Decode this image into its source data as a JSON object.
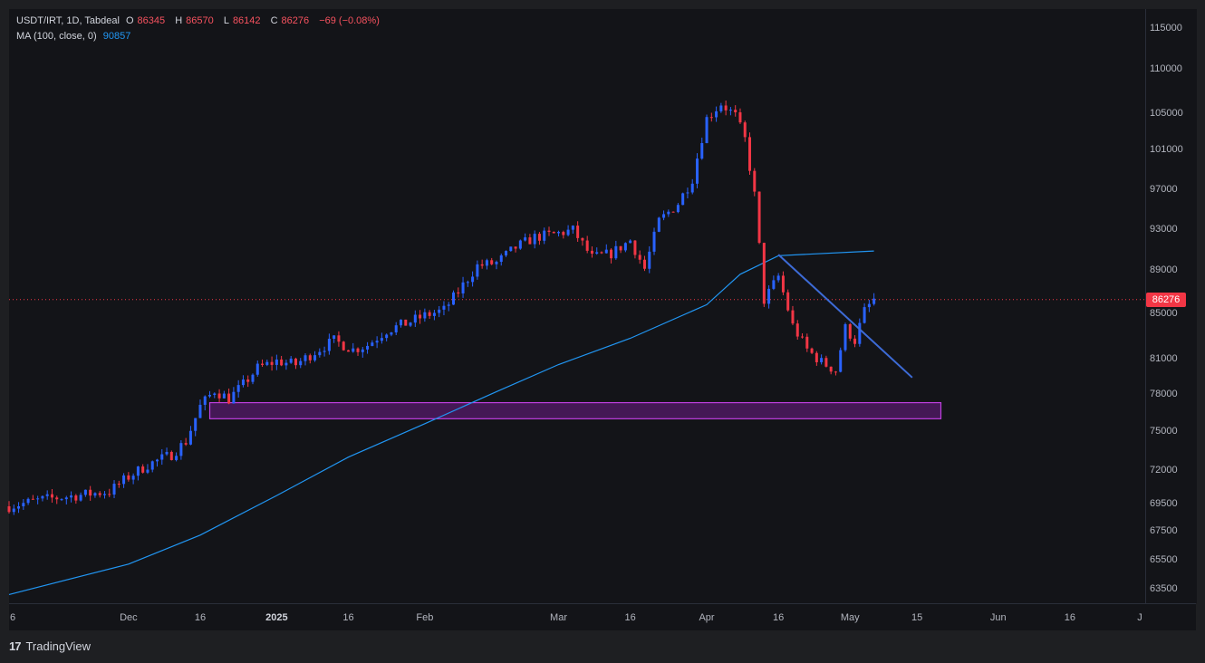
{
  "header": {
    "symbol": "USDT/IRT, 1D, Tabdeal",
    "open_label": "O",
    "open": "86345",
    "high_label": "H",
    "high": "86570",
    "low_label": "L",
    "low": "86142",
    "close_label": "C",
    "close": "86276",
    "change": "−69 (−0.08%)",
    "ma_label": "MA (100, close, 0)",
    "ma_value": "90857"
  },
  "last_price_tag": "86276",
  "branding": {
    "logo": "TradingView",
    "logo_mark": "17"
  },
  "colors": {
    "up": "#2962ff",
    "down": "#f23645",
    "ma": "#2196f3",
    "trendline": "#3d6bd6",
    "zone": "#a020c8",
    "background": "#131418"
  },
  "chart_data": {
    "type": "candlestick",
    "title": "USDT/IRT, 1D, Tabdeal",
    "y_ticks": [
      "115000",
      "110000",
      "105000",
      "101000",
      "97000",
      "93000",
      "89000",
      "85000",
      "81000",
      "78000",
      "75000",
      "72000",
      "69500",
      "67500",
      "65500",
      "63500"
    ],
    "x_ticks": [
      {
        "label": "6",
        "bold": false
      },
      {
        "label": "Dec",
        "bold": false
      },
      {
        "label": "16",
        "bold": false
      },
      {
        "label": "2025",
        "bold": true
      },
      {
        "label": "16",
        "bold": false
      },
      {
        "label": "Feb",
        "bold": false
      },
      {
        "label": "Mar",
        "bold": false
      },
      {
        "label": "16",
        "bold": false
      },
      {
        "label": "Apr",
        "bold": false
      },
      {
        "label": "16",
        "bold": false
      },
      {
        "label": "May",
        "bold": false
      },
      {
        "label": "15",
        "bold": false
      },
      {
        "label": "Jun",
        "bold": false
      },
      {
        "label": "16",
        "bold": false
      },
      {
        "label": "J",
        "bold": false
      }
    ],
    "price_anchor": [
      {
        "v": 115000,
        "y": 31
      },
      {
        "v": 110000,
        "y": 76
      },
      {
        "v": 105000,
        "y": 125
      },
      {
        "v": 101000,
        "y": 165
      },
      {
        "v": 97000,
        "y": 209
      },
      {
        "v": 93000,
        "y": 253
      },
      {
        "v": 89000,
        "y": 298
      },
      {
        "v": 85000,
        "y": 346
      },
      {
        "v": 81000,
        "y": 396
      },
      {
        "v": 78000,
        "y": 435
      },
      {
        "v": 75000,
        "y": 476
      },
      {
        "v": 72000,
        "y": 519
      },
      {
        "v": 69500,
        "y": 556
      },
      {
        "v": 67500,
        "y": 586
      },
      {
        "v": 65500,
        "y": 618
      },
      {
        "v": 63500,
        "y": 650
      }
    ],
    "time_anchor": {
      "first_date": "2024-11-06",
      "last_date": "2025-07-01"
    },
    "series_close_path": [
      [
        "2024-11-06",
        69300
      ],
      [
        "2024-11-13",
        69800
      ],
      [
        "2024-11-20",
        70100
      ],
      [
        "2024-11-27",
        70400
      ],
      [
        "2024-12-01",
        71500
      ],
      [
        "2024-12-05",
        72400
      ],
      [
        "2024-12-10",
        73200
      ],
      [
        "2024-12-13",
        74200
      ],
      [
        "2024-12-16",
        77000
      ],
      [
        "2024-12-19",
        78300
      ],
      [
        "2024-12-22",
        77600
      ],
      [
        "2024-12-25",
        78800
      ],
      [
        "2024-12-28",
        80200
      ],
      [
        "2025-01-01",
        80800
      ],
      [
        "2025-01-05",
        80500
      ],
      [
        "2025-01-09",
        81600
      ],
      [
        "2025-01-13",
        82600
      ],
      [
        "2025-01-17",
        81800
      ],
      [
        "2025-01-20",
        82200
      ],
      [
        "2025-01-24",
        83500
      ],
      [
        "2025-01-28",
        84100
      ],
      [
        "2025-02-01",
        84800
      ],
      [
        "2025-02-05",
        85300
      ],
      [
        "2025-02-08",
        87000
      ],
      [
        "2025-02-12",
        89400
      ],
      [
        "2025-02-16",
        89700
      ],
      [
        "2025-02-20",
        91200
      ],
      [
        "2025-02-24",
        92200
      ],
      [
        "2025-02-28",
        92500
      ],
      [
        "2025-03-04",
        92900
      ],
      [
        "2025-03-08",
        90200
      ],
      [
        "2025-03-12",
        90600
      ],
      [
        "2025-03-16",
        91900
      ],
      [
        "2025-03-19",
        89100
      ],
      [
        "2025-03-22",
        93800
      ],
      [
        "2025-03-26",
        95600
      ],
      [
        "2025-03-29",
        98100
      ],
      [
        "2025-04-01",
        104400
      ],
      [
        "2025-04-04",
        106100
      ],
      [
        "2025-04-07",
        104700
      ],
      [
        "2025-04-09",
        102100
      ],
      [
        "2025-04-11",
        96400
      ],
      [
        "2025-04-13",
        86200
      ],
      [
        "2025-04-16",
        88400
      ],
      [
        "2025-04-19",
        83900
      ],
      [
        "2025-04-22",
        81800
      ],
      [
        "2025-04-25",
        80700
      ],
      [
        "2025-04-28",
        80000
      ],
      [
        "2025-04-30",
        83700
      ],
      [
        "2025-05-02",
        82600
      ],
      [
        "2025-05-04",
        85200
      ],
      [
        "2025-05-06",
        86276
      ]
    ],
    "ma_100": [
      [
        "2024-11-06",
        63100
      ],
      [
        "2024-12-01",
        65200
      ],
      [
        "2024-12-16",
        67200
      ],
      [
        "2025-01-01",
        70100
      ],
      [
        "2025-01-16",
        73000
      ],
      [
        "2025-02-01",
        75600
      ],
      [
        "2025-02-16",
        78200
      ],
      [
        "2025-03-01",
        80500
      ],
      [
        "2025-03-16",
        82800
      ],
      [
        "2025-04-01",
        85800
      ],
      [
        "2025-04-08",
        88600
      ],
      [
        "2025-04-16",
        90400
      ],
      [
        "2025-05-06",
        90857
      ]
    ],
    "trendline": [
      [
        "2025-04-16",
        90500
      ],
      [
        "2025-05-14",
        79400
      ]
    ],
    "support_zone": {
      "from": "2024-12-18",
      "to": "2025-05-20",
      "low": 76000,
      "high": 77300
    },
    "last_price": 86276
  }
}
